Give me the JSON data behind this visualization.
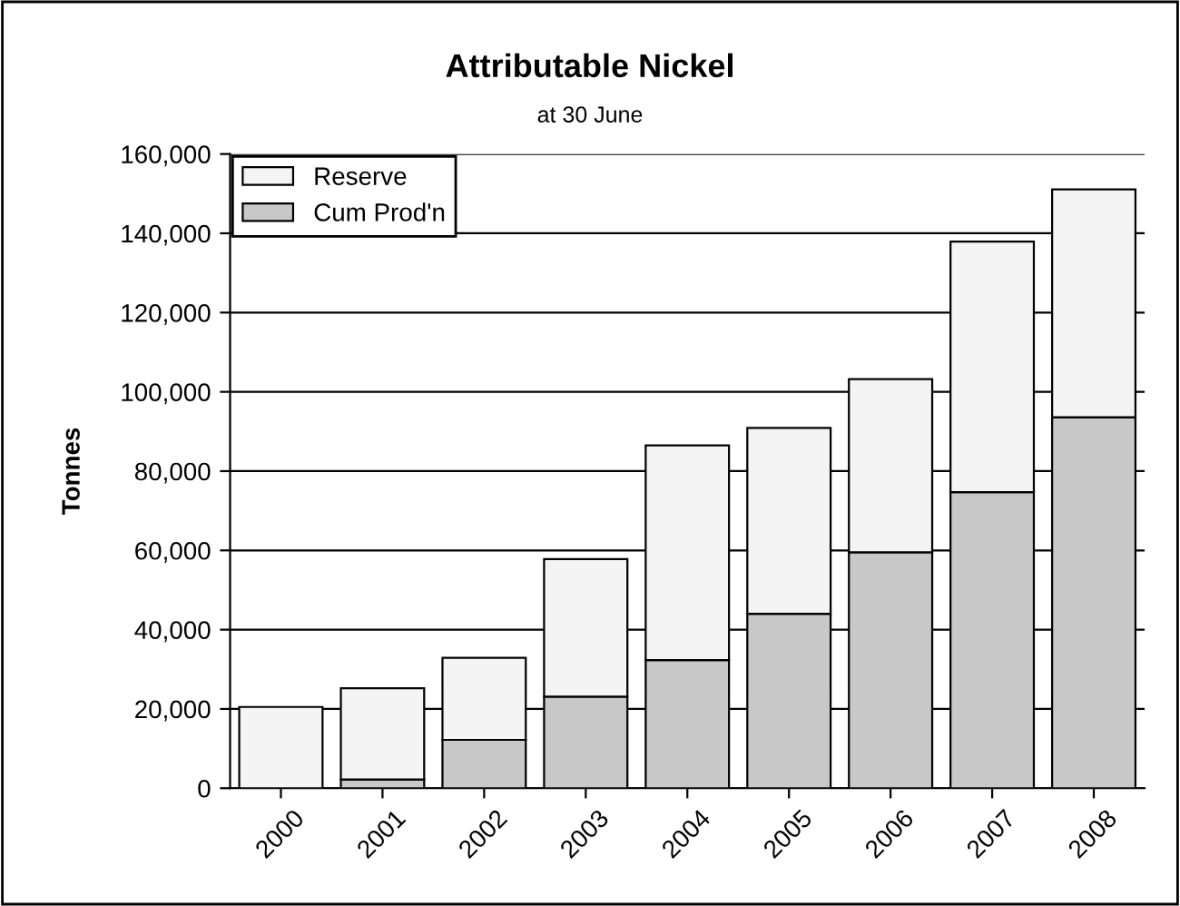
{
  "chart_data": {
    "type": "bar",
    "title": "Attributable Nickel",
    "subtitle": "at 30 June",
    "ylabel": "Tonnes",
    "categories": [
      "2000",
      "2001",
      "2002",
      "2003",
      "2004",
      "2005",
      "2006",
      "2007",
      "2008"
    ],
    "stacked": true,
    "series": [
      {
        "name": "Cum Prod'n",
        "color": "#c8c8c8",
        "values": [
          0,
          2200,
          12200,
          23100,
          32300,
          44000,
          59500,
          74700,
          93600
        ]
      },
      {
        "name": "Reserve",
        "color": "#f4f4f4",
        "values": [
          20500,
          23000,
          20700,
          34700,
          54200,
          46900,
          43700,
          63200,
          57500
        ]
      }
    ],
    "ylim": [
      0,
      160000
    ],
    "yticks": [
      {
        "value": 0,
        "label": "0"
      },
      {
        "value": 20000,
        "label": "20,000"
      },
      {
        "value": 40000,
        "label": "40,000"
      },
      {
        "value": 60000,
        "label": "60,000"
      },
      {
        "value": 80000,
        "label": "80,000"
      },
      {
        "value": 100000,
        "label": "100,000"
      },
      {
        "value": 120000,
        "label": "120,000"
      },
      {
        "value": 140000,
        "label": "140,000"
      },
      {
        "value": 160000,
        "label": "160,000"
      }
    ],
    "grid": "y",
    "legend": "top left"
  }
}
